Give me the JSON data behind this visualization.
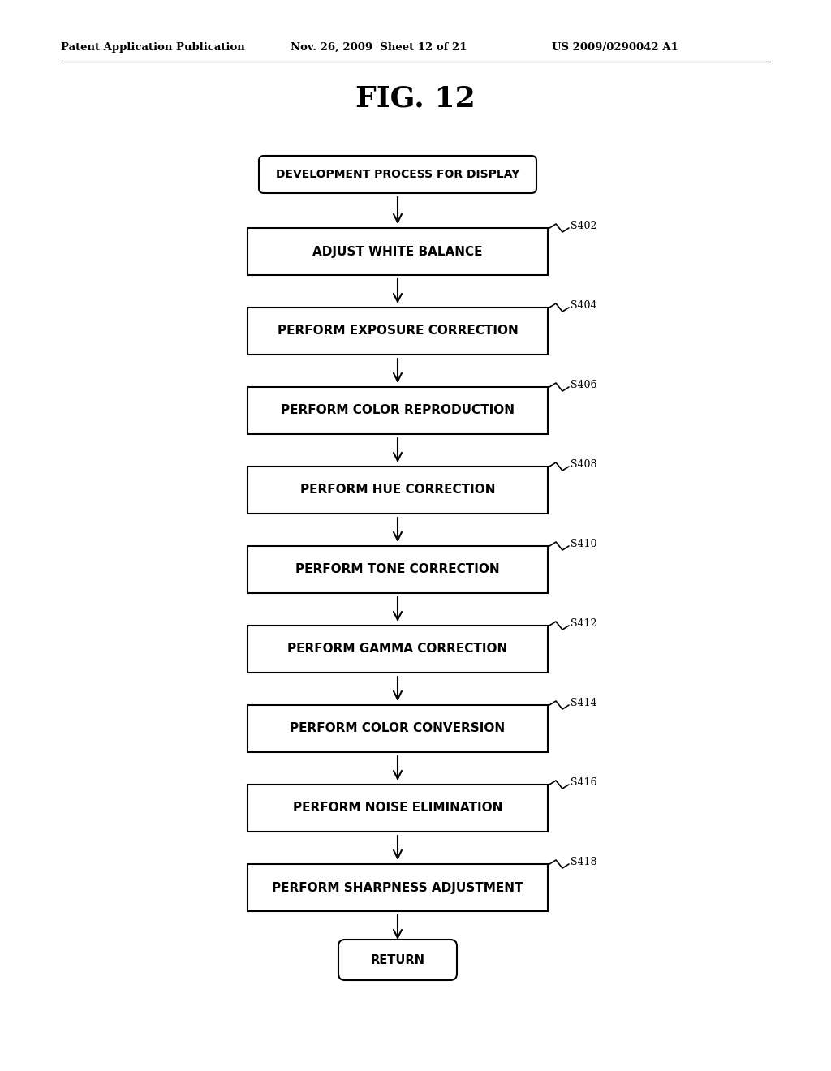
{
  "title": "FIG. 12",
  "header_left": "Patent Application Publication",
  "header_mid": "Nov. 26, 2009  Sheet 12 of 21",
  "header_right": "US 2009/0290042 A1",
  "start_label": "DEVELOPMENT PROCESS FOR DISPLAY",
  "end_label": "RETURN",
  "steps": [
    {
      "label": "ADJUST WHITE BALANCE",
      "step_id": "S402"
    },
    {
      "label": "PERFORM EXPOSURE CORRECTION",
      "step_id": "S404"
    },
    {
      "label": "PERFORM COLOR REPRODUCTION",
      "step_id": "S406"
    },
    {
      "label": "PERFORM HUE CORRECTION",
      "step_id": "S408"
    },
    {
      "label": "PERFORM TONE CORRECTION",
      "step_id": "S410"
    },
    {
      "label": "PERFORM GAMMA CORRECTION",
      "step_id": "S412"
    },
    {
      "label": "PERFORM COLOR CONVERSION",
      "step_id": "S414"
    },
    {
      "label": "PERFORM NOISE ELIMINATION",
      "step_id": "S416"
    },
    {
      "label": "PERFORM SHARPNESS ADJUSTMENT",
      "step_id": "S418"
    }
  ],
  "bg_color": "#ffffff",
  "box_color": "#000000",
  "text_color": "#000000",
  "arrow_color": "#000000",
  "fig_width": 10.24,
  "fig_height": 13.2,
  "dpi": 100
}
